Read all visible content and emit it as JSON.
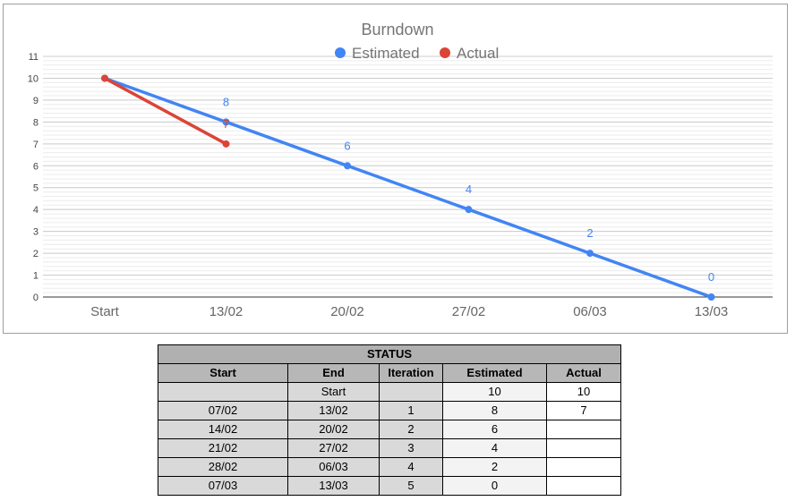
{
  "chart_data": {
    "type": "line",
    "title": "Burndown",
    "categories": [
      "Start",
      "13/02",
      "20/02",
      "27/02",
      "06/03",
      "13/03"
    ],
    "series": [
      {
        "name": "Estimated",
        "color": "#4285f4",
        "values": [
          10,
          8,
          6,
          4,
          2,
          0
        ],
        "labels": [
          "",
          "8",
          "6",
          "4",
          "2",
          "0"
        ]
      },
      {
        "name": "Actual",
        "color": "#db4437",
        "values": [
          10,
          7,
          null,
          null,
          null,
          null
        ],
        "labels": [
          "",
          "7",
          "",
          "",
          "",
          ""
        ]
      }
    ],
    "ylim": [
      0,
      11
    ],
    "yticks": [
      "0",
      "1",
      "2",
      "3",
      "4",
      "5",
      "6",
      "7",
      "8",
      "9",
      "10",
      "11"
    ],
    "grid": true,
    "legend": "top-center",
    "xlabel": "",
    "ylabel": ""
  },
  "table": {
    "title": "STATUS",
    "headers": [
      "Start",
      "End",
      "Iteration",
      "Estimated",
      "Actual"
    ],
    "rows": [
      [
        "",
        "Start",
        "",
        "10",
        "10"
      ],
      [
        "07/02",
        "13/02",
        "1",
        "8",
        "7"
      ],
      [
        "14/02",
        "20/02",
        "2",
        "6",
        ""
      ],
      [
        "21/02",
        "27/02",
        "3",
        "4",
        ""
      ],
      [
        "28/02",
        "06/03",
        "4",
        "2",
        ""
      ],
      [
        "07/03",
        "13/03",
        "5",
        "0",
        ""
      ]
    ]
  }
}
